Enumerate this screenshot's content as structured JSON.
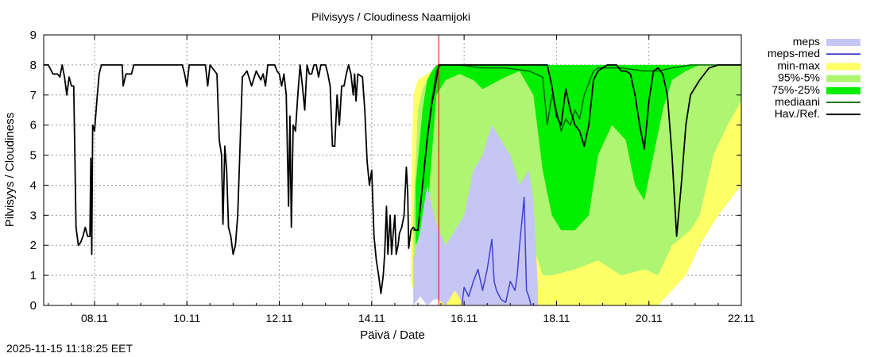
{
  "chart_data": {
    "type": "area",
    "title": "Pilvisyys / Cloudiness Naamijoki",
    "xlabel": "Päivä / Date",
    "ylabel": "Pilvisyys / Cloudiness",
    "ylim": [
      0,
      9
    ],
    "yticks": [
      0,
      1,
      2,
      3,
      4,
      5,
      6,
      7,
      8,
      9
    ],
    "xlim": [
      7.0,
      22.1
    ],
    "xticks": [
      {
        "value": 8.1,
        "label": "08.11"
      },
      {
        "value": 10.1,
        "label": "10.11"
      },
      {
        "value": 12.1,
        "label": "12.11"
      },
      {
        "value": 14.1,
        "label": "14.11"
      },
      {
        "value": 16.1,
        "label": "16.11"
      },
      {
        "value": 18.1,
        "label": "18.11"
      },
      {
        "value": 20.1,
        "label": "20.11"
      },
      {
        "value": 22.1,
        "label": "22.11"
      }
    ],
    "grid": true,
    "legend_position": "right",
    "now_marker": 15.55,
    "legend": [
      {
        "label": "meps",
        "kind": "band",
        "color": "#c6c6f5"
      },
      {
        "label": "meps-med",
        "kind": "line",
        "color": "#4040d0"
      },
      {
        "label": "min-max",
        "kind": "band",
        "color": "#ffff66"
      },
      {
        "label": "95%-5%",
        "kind": "band",
        "color": "#aef572"
      },
      {
        "label": "75%-25%",
        "kind": "band",
        "color": "#00ee00"
      },
      {
        "label": "mediaani",
        "kind": "line",
        "color": "#006400"
      },
      {
        "label": "Hav./Ref.",
        "kind": "line",
        "color": "#000000"
      }
    ],
    "series": {
      "observed": [
        [
          7.0,
          8
        ],
        [
          7.1,
          8
        ],
        [
          7.2,
          7.7
        ],
        [
          7.3,
          7.7
        ],
        [
          7.35,
          7.6
        ],
        [
          7.4,
          8
        ],
        [
          7.45,
          7.6
        ],
        [
          7.5,
          7.0
        ],
        [
          7.55,
          7.6
        ],
        [
          7.6,
          7.3
        ],
        [
          7.65,
          7.3
        ],
        [
          7.7,
          2.6
        ],
        [
          7.75,
          2.0
        ],
        [
          7.8,
          2.1
        ],
        [
          7.85,
          2.3
        ],
        [
          7.9,
          2.6
        ],
        [
          7.95,
          2.3
        ],
        [
          8.0,
          2.3
        ],
        [
          8.02,
          4.9
        ],
        [
          8.04,
          1.7
        ],
        [
          8.06,
          6.0
        ],
        [
          8.1,
          5.8
        ],
        [
          8.15,
          6.8
        ],
        [
          8.2,
          7.7
        ],
        [
          8.25,
          8
        ],
        [
          8.5,
          8
        ],
        [
          8.7,
          8
        ],
        [
          8.72,
          7.3
        ],
        [
          8.78,
          7.7
        ],
        [
          8.9,
          7.7
        ],
        [
          8.95,
          8
        ],
        [
          9.5,
          8
        ],
        [
          10.0,
          8
        ],
        [
          10.05,
          7.7
        ],
        [
          10.1,
          7.3
        ],
        [
          10.15,
          8
        ],
        [
          10.5,
          8
        ],
        [
          10.55,
          7.3
        ],
        [
          10.6,
          8
        ],
        [
          10.75,
          7.7
        ],
        [
          10.8,
          5.5
        ],
        [
          10.85,
          5.0
        ],
        [
          10.88,
          2.7
        ],
        [
          10.92,
          5.3
        ],
        [
          10.96,
          4.5
        ],
        [
          11.0,
          2.6
        ],
        [
          11.05,
          2.3
        ],
        [
          11.1,
          1.7
        ],
        [
          11.15,
          2.0
        ],
        [
          11.2,
          3.0
        ],
        [
          11.3,
          7.6
        ],
        [
          11.4,
          7.8
        ],
        [
          11.5,
          7.3
        ],
        [
          11.6,
          7.8
        ],
        [
          11.7,
          7.5
        ],
        [
          11.75,
          7.7
        ],
        [
          11.8,
          7.3
        ],
        [
          11.85,
          8
        ],
        [
          12.0,
          8
        ],
        [
          12.05,
          7.8
        ],
        [
          12.1,
          7.7
        ],
        [
          12.15,
          7.3
        ],
        [
          12.2,
          7.7
        ],
        [
          12.25,
          7.0
        ],
        [
          12.3,
          3.3
        ],
        [
          12.33,
          6.3
        ],
        [
          12.36,
          2.6
        ],
        [
          12.4,
          6.0
        ],
        [
          12.45,
          5.8
        ],
        [
          12.5,
          7.0
        ],
        [
          12.55,
          8
        ],
        [
          12.6,
          7.3
        ],
        [
          12.65,
          6.5
        ],
        [
          12.7,
          8
        ],
        [
          12.75,
          7.7
        ],
        [
          12.8,
          7.7
        ],
        [
          12.85,
          8
        ],
        [
          12.9,
          8
        ],
        [
          12.95,
          7.6
        ],
        [
          13.0,
          8
        ],
        [
          13.1,
          8
        ],
        [
          13.15,
          7.7
        ],
        [
          13.2,
          7.3
        ],
        [
          13.25,
          5.3
        ],
        [
          13.3,
          5.3
        ],
        [
          13.35,
          7.0
        ],
        [
          13.4,
          6.0
        ],
        [
          13.45,
          7.3
        ],
        [
          13.5,
          7.3
        ],
        [
          13.55,
          7.7
        ],
        [
          13.6,
          8
        ],
        [
          13.65,
          7.7
        ],
        [
          13.7,
          7.0
        ],
        [
          13.73,
          7.7
        ],
        [
          13.76,
          6.8
        ],
        [
          13.8,
          7.7
        ],
        [
          13.9,
          7.6
        ],
        [
          13.95,
          6.5
        ],
        [
          14.0,
          4.8
        ],
        [
          14.05,
          4.0
        ],
        [
          14.1,
          4.5
        ],
        [
          14.15,
          2.3
        ],
        [
          14.2,
          1.5
        ],
        [
          14.25,
          1.0
        ],
        [
          14.3,
          0.4
        ],
        [
          14.35,
          1.0
        ],
        [
          14.38,
          1.7
        ],
        [
          14.42,
          3.3
        ],
        [
          14.45,
          1.7
        ],
        [
          14.5,
          3.0
        ],
        [
          14.53,
          1.7
        ],
        [
          14.56,
          2.3
        ],
        [
          14.6,
          3.0
        ],
        [
          14.63,
          1.7
        ],
        [
          14.67,
          2.0
        ],
        [
          14.7,
          2.4
        ],
        [
          14.75,
          2.6
        ],
        [
          14.8,
          3.0
        ],
        [
          14.85,
          4.6
        ],
        [
          14.88,
          3.7
        ],
        [
          14.9,
          1.9
        ],
        [
          14.95,
          2.5
        ],
        [
          15.0,
          2.6
        ],
        [
          15.05,
          2.5
        ],
        [
          15.1,
          2.5
        ],
        [
          15.2,
          4.0
        ],
        [
          15.3,
          5.5
        ],
        [
          15.4,
          6.7
        ],
        [
          15.5,
          7.5
        ],
        [
          15.55,
          8
        ],
        [
          16.0,
          8
        ],
        [
          16.5,
          8
        ],
        [
          17.0,
          8
        ],
        [
          17.5,
          8
        ],
        [
          17.9,
          8
        ],
        [
          18.0,
          7.3
        ],
        [
          18.05,
          6.8
        ],
        [
          18.1,
          6.3
        ],
        [
          18.2,
          6.0
        ],
        [
          18.3,
          7.2
        ],
        [
          18.4,
          6.5
        ],
        [
          18.5,
          6.0
        ],
        [
          18.6,
          5.8
        ],
        [
          18.7,
          5.3
        ],
        [
          18.8,
          6.0
        ],
        [
          18.9,
          7.5
        ],
        [
          19.0,
          7.8
        ],
        [
          19.1,
          7.9
        ],
        [
          19.2,
          8
        ],
        [
          19.4,
          8
        ],
        [
          19.5,
          7.8
        ],
        [
          19.6,
          7.8
        ],
        [
          19.7,
          7.7
        ],
        [
          19.8,
          7.0
        ],
        [
          19.9,
          6.0
        ],
        [
          20.0,
          5.2
        ],
        [
          20.1,
          6.8
        ],
        [
          20.2,
          7.8
        ],
        [
          20.3,
          7.9
        ],
        [
          20.4,
          7.7
        ],
        [
          20.5,
          7.0
        ],
        [
          20.6,
          5.0
        ],
        [
          20.7,
          2.3
        ],
        [
          20.8,
          4.0
        ],
        [
          20.9,
          6.0
        ],
        [
          21.0,
          7.0
        ],
        [
          21.2,
          7.5
        ],
        [
          21.4,
          7.9
        ],
        [
          21.6,
          8
        ],
        [
          22.1,
          8
        ]
      ],
      "median": [
        [
          15.0,
          2.5
        ],
        [
          15.1,
          2.5
        ],
        [
          15.2,
          4.0
        ],
        [
          15.3,
          5.6
        ],
        [
          15.4,
          6.8
        ],
        [
          15.5,
          7.8
        ],
        [
          15.6,
          8
        ],
        [
          16.0,
          8
        ],
        [
          16.5,
          7.9
        ],
        [
          17.0,
          7.9
        ],
        [
          17.5,
          7.8
        ],
        [
          17.8,
          7.6
        ],
        [
          17.9,
          6.0
        ],
        [
          18.0,
          7.0
        ],
        [
          18.1,
          6.5
        ],
        [
          18.2,
          5.8
        ],
        [
          18.3,
          6.2
        ],
        [
          18.4,
          6.0
        ],
        [
          18.5,
          6.5
        ],
        [
          18.6,
          6.2
        ],
        [
          18.7,
          7.0
        ],
        [
          18.8,
          7.4
        ],
        [
          18.9,
          7.8
        ],
        [
          19.0,
          7.9
        ],
        [
          19.5,
          7.9
        ],
        [
          20.0,
          7.8
        ],
        [
          20.3,
          7.8
        ],
        [
          20.6,
          7.9
        ],
        [
          21.0,
          8
        ],
        [
          22.1,
          8
        ]
      ],
      "minmax": [
        [
          14.95,
          0.8,
          3.5
        ],
        [
          15.0,
          0.5,
          7.0
        ],
        [
          15.1,
          1.0,
          7.5
        ],
        [
          15.2,
          1.5,
          7.6
        ],
        [
          15.3,
          1.5,
          7.7
        ],
        [
          15.4,
          0.3,
          7.8
        ],
        [
          15.5,
          0.5,
          7.9
        ],
        [
          15.6,
          0,
          7.9
        ],
        [
          15.8,
          0,
          7.9
        ],
        [
          16.0,
          0,
          7.8
        ],
        [
          16.5,
          0,
          7.9
        ],
        [
          17.0,
          0,
          7.8
        ],
        [
          17.5,
          0,
          7.9
        ],
        [
          18.0,
          0,
          7.9
        ],
        [
          18.5,
          0,
          7.9
        ],
        [
          19.0,
          0,
          7.9
        ],
        [
          19.5,
          0,
          7.9
        ],
        [
          20.0,
          0,
          7.9
        ],
        [
          20.3,
          0,
          7.9
        ],
        [
          20.6,
          0.5,
          7.9
        ],
        [
          20.9,
          1.0,
          8
        ],
        [
          21.2,
          2.0,
          8
        ],
        [
          21.6,
          3.0,
          8
        ],
        [
          22.1,
          4.0,
          8
        ]
      ],
      "p95_5": [
        [
          15.0,
          0.5,
          3.0
        ],
        [
          15.1,
          1.0,
          6.5
        ],
        [
          15.2,
          1.5,
          7.2
        ],
        [
          15.3,
          2.0,
          7.5
        ],
        [
          15.4,
          1.0,
          7.6
        ],
        [
          15.5,
          0.5,
          7.7
        ],
        [
          15.6,
          0.5,
          7.8
        ],
        [
          15.8,
          0.8,
          7.8
        ],
        [
          16.0,
          1.5,
          7.8
        ],
        [
          16.2,
          2.0,
          7.9
        ],
        [
          16.5,
          2.5,
          7.9
        ],
        [
          16.8,
          1.5,
          7.9
        ],
        [
          17.0,
          1.0,
          7.9
        ],
        [
          17.3,
          1.5,
          7.9
        ],
        [
          17.6,
          2.0,
          7.9
        ],
        [
          17.8,
          1.0,
          7.9
        ],
        [
          18.0,
          1.0,
          7.9
        ],
        [
          18.5,
          1.2,
          7.9
        ],
        [
          19.0,
          1.5,
          8
        ],
        [
          19.5,
          1.0,
          8
        ],
        [
          20.0,
          1.2,
          8
        ],
        [
          20.3,
          1.0,
          8
        ],
        [
          20.6,
          2.0,
          8
        ],
        [
          21.0,
          2.5,
          8
        ],
        [
          21.2,
          3.0,
          8
        ],
        [
          21.5,
          5.0,
          8
        ],
        [
          21.8,
          6.0,
          8
        ],
        [
          22.1,
          6.8,
          8
        ]
      ],
      "p75_25": [
        [
          15.05,
          2.0,
          4.0
        ],
        [
          15.2,
          2.5,
          6.5
        ],
        [
          15.3,
          3.0,
          7.5
        ],
        [
          15.4,
          5.0,
          7.8
        ],
        [
          15.5,
          7.0,
          8
        ],
        [
          15.7,
          7.5,
          8
        ],
        [
          16.0,
          7.7,
          8
        ],
        [
          16.3,
          7.5,
          8
        ],
        [
          16.5,
          7.2,
          8
        ],
        [
          17.0,
          7.6,
          8
        ],
        [
          17.3,
          7.8,
          8
        ],
        [
          17.6,
          7.0,
          8
        ],
        [
          17.8,
          4.5,
          8
        ],
        [
          18.0,
          3.0,
          8
        ],
        [
          18.2,
          2.5,
          8
        ],
        [
          18.5,
          2.5,
          8
        ],
        [
          18.8,
          3.0,
          8
        ],
        [
          19.0,
          5.0,
          8
        ],
        [
          19.3,
          6.0,
          8
        ],
        [
          19.6,
          5.5,
          8
        ],
        [
          19.8,
          4.0,
          8
        ],
        [
          20.0,
          3.5,
          8
        ],
        [
          20.2,
          5.0,
          8
        ],
        [
          20.4,
          6.5,
          8
        ],
        [
          20.6,
          7.5,
          8
        ],
        [
          20.9,
          7.8,
          8
        ],
        [
          21.2,
          8,
          8
        ]
      ],
      "meps": [
        [
          15.0,
          0.0,
          1.5
        ],
        [
          15.15,
          0.3,
          2.5
        ],
        [
          15.3,
          0.0,
          4.0
        ],
        [
          15.45,
          0.2,
          3.0
        ],
        [
          15.55,
          0.2,
          2.5
        ],
        [
          15.7,
          0.0,
          2.0
        ],
        [
          15.9,
          0.5,
          2.5
        ],
        [
          16.1,
          0,
          3.0
        ],
        [
          16.3,
          0,
          4.5
        ],
        [
          16.5,
          0,
          5.0
        ],
        [
          16.7,
          0,
          6.0
        ],
        [
          16.9,
          0,
          5.5
        ],
        [
          17.1,
          0,
          5.0
        ],
        [
          17.3,
          0,
          4.0
        ],
        [
          17.5,
          0,
          4.5
        ],
        [
          17.6,
          0,
          3.5
        ],
        [
          17.7,
          0,
          0.5
        ]
      ],
      "meps_median": [
        [
          16.05,
          0.0
        ],
        [
          16.1,
          0.6
        ],
        [
          16.2,
          0.3
        ],
        [
          16.3,
          0.8
        ],
        [
          16.4,
          1.2
        ],
        [
          16.5,
          0.5
        ],
        [
          16.6,
          1.2
        ],
        [
          16.7,
          2.2
        ],
        [
          16.75,
          0.8
        ],
        [
          16.8,
          0.5
        ],
        [
          16.9,
          0.2
        ],
        [
          17.0,
          0.1
        ],
        [
          17.1,
          0.8
        ],
        [
          17.2,
          0.5
        ],
        [
          17.25,
          1.0
        ],
        [
          17.3,
          2.0
        ],
        [
          17.4,
          3.6
        ],
        [
          17.45,
          0.5
        ],
        [
          17.5,
          0.3
        ],
        [
          17.55,
          0.0
        ]
      ]
    }
  },
  "timestamp": "2025-11-15 11:18:25 EET"
}
